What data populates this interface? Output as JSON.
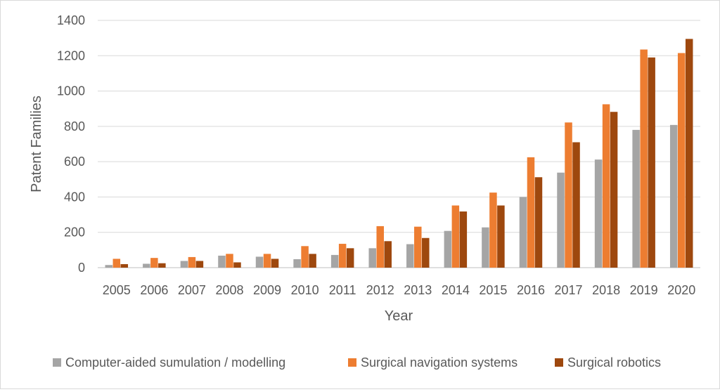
{
  "chart_data": {
    "type": "bar",
    "title": "",
    "xlabel": "Year",
    "ylabel": "Patent Families",
    "ylim": [
      0,
      1400
    ],
    "yticks": [
      0,
      200,
      400,
      600,
      800,
      1000,
      1200,
      1400
    ],
    "grid": true,
    "legend_position": "bottom",
    "categories": [
      "2005",
      "2006",
      "2007",
      "2008",
      "2009",
      "2010",
      "2011",
      "2012",
      "2013",
      "2014",
      "2015",
      "2016",
      "2017",
      "2018",
      "2019",
      "2020"
    ],
    "series": [
      {
        "name": "Computer-aided sumulation / modelling",
        "color": "#a5a5a5",
        "values": [
          15,
          22,
          38,
          68,
          62,
          48,
          72,
          110,
          133,
          208,
          228,
          400,
          538,
          612,
          780,
          808
        ]
      },
      {
        "name": "Surgical navigation systems",
        "color": "#ed7d31",
        "values": [
          50,
          55,
          60,
          78,
          78,
          122,
          135,
          235,
          232,
          352,
          425,
          625,
          822,
          925,
          1235,
          1215
        ]
      },
      {
        "name": "Surgical robotics",
        "color": "#9e480e",
        "values": [
          20,
          25,
          38,
          30,
          50,
          78,
          110,
          150,
          168,
          318,
          352,
          512,
          710,
          882,
          1190,
          1295
        ]
      }
    ]
  }
}
